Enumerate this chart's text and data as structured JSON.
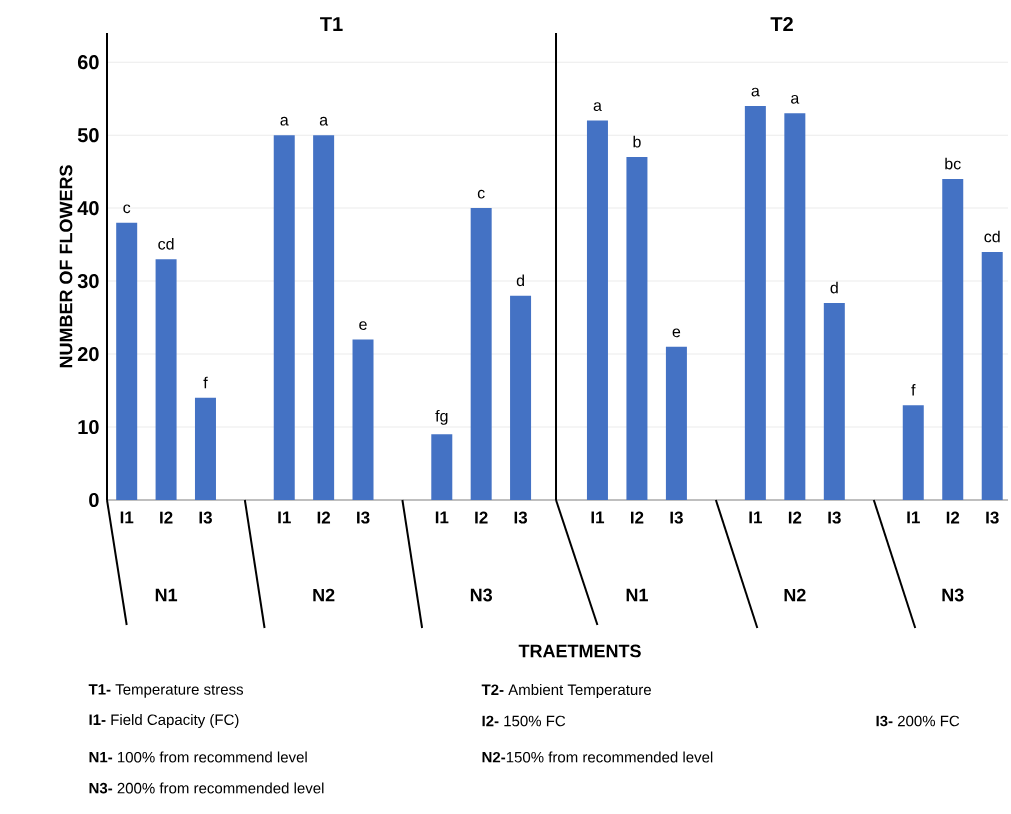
{
  "chart_data": [
    {
      "type": "bar",
      "title": "T1",
      "ylabel": "NUMBER OF FLOWERS",
      "xlabel": "TRAETMENTS",
      "categories": [
        "I1",
        "I2",
        "I3",
        "I1",
        "I2",
        "I3",
        "I1",
        "I2",
        "I3"
      ],
      "values": [
        38,
        33,
        14,
        50,
        50,
        22,
        9,
        40,
        28
      ],
      "value_labels": [
        "c",
        "cd",
        "f",
        "a",
        "a",
        "e",
        "fg",
        "c",
        "d"
      ],
      "color": "#4472c4",
      "ylim": [
        0,
        64
      ],
      "yticks": [
        0,
        10,
        20,
        30,
        40,
        50,
        60
      ],
      "grid": "y",
      "annotations": [
        "N1",
        "N2",
        "N3"
      ]
    },
    {
      "type": "bar",
      "title": "T2",
      "categories": [
        "I1",
        "I2",
        "I3",
        "I1",
        "I2",
        "I3",
        "I1",
        "I2",
        "I3"
      ],
      "values": [
        52,
        47,
        21,
        54,
        53,
        27,
        13,
        44,
        34
      ],
      "value_labels": [
        "a",
        "b",
        "e",
        "a",
        "a",
        "d",
        "f",
        "bc",
        "cd"
      ],
      "color": "#4472c4",
      "ylim": [
        0,
        64
      ],
      "yticks": [
        0,
        10,
        20,
        30,
        40,
        50,
        60
      ],
      "grid": "y",
      "tick_labels": "x",
      "annotations": [
        "N1",
        "N2",
        "N3"
      ]
    },
    {
      "type": "other",
      "annotations": [
        "**T1-** Temperature stress",
        "**T2-** Ambient Temperature",
        "**I1-** Field Capacity (FC)",
        "**I2-** 150% FC",
        "**I3-** 200% FC",
        "**N1-** 100% from recommend level",
        "**N2-**150% from recommended level",
        "**N3-** 200% from recommended level"
      ]
    }
  ]
}
